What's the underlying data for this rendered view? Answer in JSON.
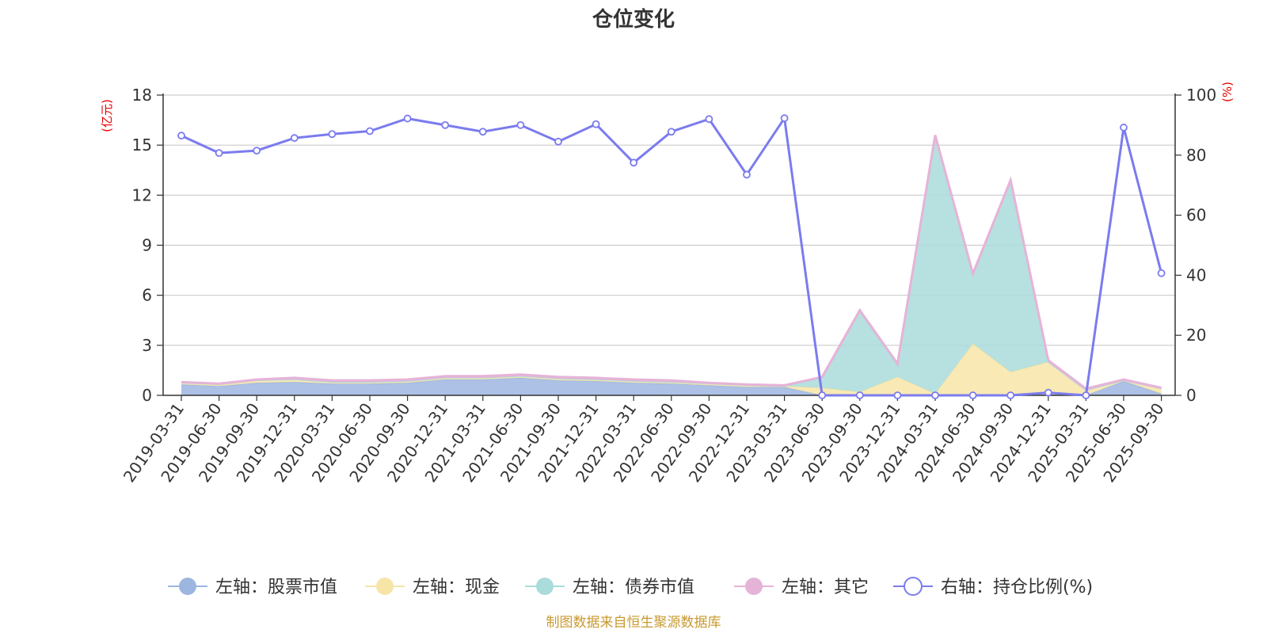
{
  "chart_data": {
    "type": "area",
    "title": "仓位变化",
    "left_axis_unit": "(亿元)",
    "right_axis_unit": "(%)",
    "categories": [
      "2019-03-31",
      "2019-06-30",
      "2019-09-30",
      "2019-12-31",
      "2020-03-31",
      "2020-06-30",
      "2020-09-30",
      "2020-12-31",
      "2021-03-31",
      "2021-06-30",
      "2021-09-30",
      "2021-12-31",
      "2022-03-31",
      "2022-06-30",
      "2022-09-30",
      "2022-12-31",
      "2023-03-31",
      "2023-06-30",
      "2023-09-30",
      "2023-12-31",
      "2024-03-31",
      "2024-06-30",
      "2024-09-30",
      "2024-12-31",
      "2025-03-31",
      "2025-06-30",
      "2025-09-30"
    ],
    "y_left": {
      "min": 0,
      "max": 18,
      "ticks": [
        "0",
        "3",
        "6",
        "9",
        "12",
        "15",
        "18"
      ]
    },
    "y_right": {
      "min": 0,
      "max": 100,
      "ticks": [
        "0",
        "20",
        "40",
        "60",
        "80",
        "100"
      ]
    },
    "grid": true,
    "legend_position": "bottom",
    "series": [
      {
        "name": "左轴：股票市值",
        "axis": "left",
        "kind": "stacked-area",
        "color": "#9db6e0",
        "values": [
          0.65,
          0.55,
          0.75,
          0.8,
          0.7,
          0.7,
          0.75,
          0.95,
          0.95,
          1.05,
          0.9,
          0.85,
          0.75,
          0.7,
          0.6,
          0.5,
          0.5,
          0.0,
          0.0,
          0.0,
          0.0,
          0.0,
          0.0,
          0.05,
          0.0,
          0.85,
          0.1
        ]
      },
      {
        "name": "左轴：现金",
        "axis": "left",
        "kind": "stacked-area",
        "color": "#f7e5a8",
        "values": [
          0.1,
          0.1,
          0.15,
          0.15,
          0.1,
          0.1,
          0.1,
          0.1,
          0.1,
          0.1,
          0.1,
          0.1,
          0.1,
          0.1,
          0.1,
          0.1,
          0.05,
          0.45,
          0.2,
          1.1,
          0.1,
          3.1,
          1.4,
          1.95,
          0.3,
          0.05,
          0.3
        ]
      },
      {
        "name": "左轴：债券市值",
        "axis": "left",
        "kind": "stacked-area",
        "color": "#a9dcdb",
        "values": [
          0.0,
          0.0,
          0.0,
          0.0,
          0.0,
          0.0,
          0.0,
          0.0,
          0.0,
          0.0,
          0.0,
          0.0,
          0.0,
          0.0,
          0.0,
          0.0,
          0.0,
          0.6,
          4.8,
          0.7,
          15.4,
          4.1,
          11.4,
          0.0,
          0.0,
          0.0,
          0.0
        ]
      },
      {
        "name": "左轴：其它",
        "axis": "left",
        "kind": "stacked-area",
        "color": "#e6b3d8",
        "values": [
          0.05,
          0.05,
          0.05,
          0.1,
          0.1,
          0.1,
          0.1,
          0.1,
          0.1,
          0.1,
          0.1,
          0.1,
          0.1,
          0.1,
          0.05,
          0.05,
          0.05,
          0.05,
          0.1,
          0.1,
          0.1,
          0.1,
          0.1,
          0.1,
          0.1,
          0.05,
          0.05
        ]
      },
      {
        "name": "右轴：持仓比例(%)",
        "axis": "right",
        "kind": "line",
        "color": "#7b7bef",
        "values": [
          86.5,
          80.7,
          81.5,
          85.7,
          87.0,
          88.0,
          92.2,
          90.0,
          87.8,
          90.0,
          84.5,
          90.3,
          77.5,
          87.8,
          92.0,
          73.5,
          92.3,
          0.0,
          0.0,
          0.0,
          0.0,
          0.0,
          0.0,
          0.9,
          0.0,
          89.2,
          40.7
        ]
      }
    ]
  },
  "source_note": "制图数据来自恒生聚源数据库"
}
